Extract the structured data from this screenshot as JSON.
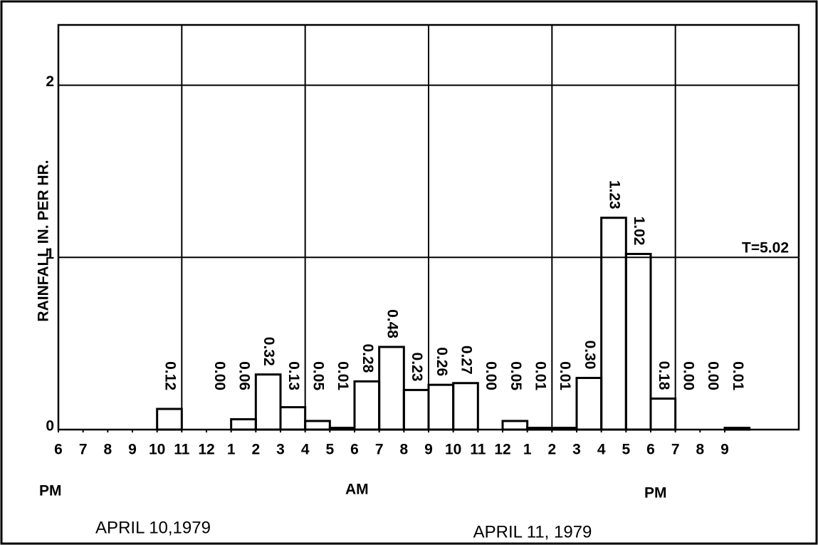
{
  "chart_data": {
    "type": "histogram",
    "ylabel": "RAINFALL IN. PER HR.",
    "bins": [
      4,
      5,
      6,
      7,
      8,
      9,
      10,
      11,
      12,
      13,
      14,
      15,
      16,
      17,
      18,
      19,
      20,
      21,
      22,
      23,
      24,
      25,
      26,
      27,
      28
    ],
    "values": [
      0.12,
      null,
      0.0,
      0.06,
      0.32,
      0.13,
      0.05,
      0.01,
      0.28,
      0.48,
      0.23,
      0.26,
      0.27,
      0.0,
      0.05,
      0.01,
      0.01,
      0.3,
      1.23,
      1.02,
      0.18,
      0.0,
      0.0,
      0.01
    ],
    "value_labels": [
      "0.12",
      null,
      "0.00",
      "0.06",
      "0.32",
      "0.13",
      "0.05",
      "0.01",
      "0.28",
      "0.48",
      "0.23",
      "0.26",
      "0.27",
      "0.00",
      "0.05",
      "0.01",
      "0.01",
      "0.30",
      "1.23",
      "1.02",
      "0.18",
      "0.00",
      "0.00",
      "0.01"
    ],
    "color": "#000000",
    "xlim": [
      0,
      30
    ],
    "xticks": [
      {
        "value": 0,
        "label": "6"
      },
      {
        "value": 1,
        "label": "7"
      },
      {
        "value": 2,
        "label": "8"
      },
      {
        "value": 3,
        "label": "9"
      },
      {
        "value": 4,
        "label": "10"
      },
      {
        "value": 5,
        "label": "11"
      },
      {
        "value": 6,
        "label": "12"
      },
      {
        "value": 7,
        "label": "1"
      },
      {
        "value": 8,
        "label": "2"
      },
      {
        "value": 9,
        "label": "3"
      },
      {
        "value": 10,
        "label": "4"
      },
      {
        "value": 11,
        "label": "5"
      },
      {
        "value": 12,
        "label": "6"
      },
      {
        "value": 13,
        "label": "7"
      },
      {
        "value": 14,
        "label": "8"
      },
      {
        "value": 15,
        "label": "9"
      },
      {
        "value": 16,
        "label": "10"
      },
      {
        "value": 17,
        "label": "11"
      },
      {
        "value": 18,
        "label": "12"
      },
      {
        "value": 19,
        "label": "1"
      },
      {
        "value": 20,
        "label": "2"
      },
      {
        "value": 21,
        "label": "3"
      },
      {
        "value": 22,
        "label": "4"
      },
      {
        "value": 23,
        "label": "5"
      },
      {
        "value": 24,
        "label": "6"
      },
      {
        "value": 25,
        "label": "7"
      },
      {
        "value": 26,
        "label": "8"
      },
      {
        "value": 27,
        "label": "9"
      }
    ],
    "xgrid": [
      5,
      10,
      15,
      20,
      25
    ],
    "ylim": [
      0,
      2.35
    ],
    "yticks": [
      0,
      1,
      2
    ],
    "grid": true,
    "annotations": [
      "T=5.02",
      "PM",
      "AM",
      "PM",
      "APRIL 10,1979",
      "APRIL 11, 1979"
    ]
  }
}
